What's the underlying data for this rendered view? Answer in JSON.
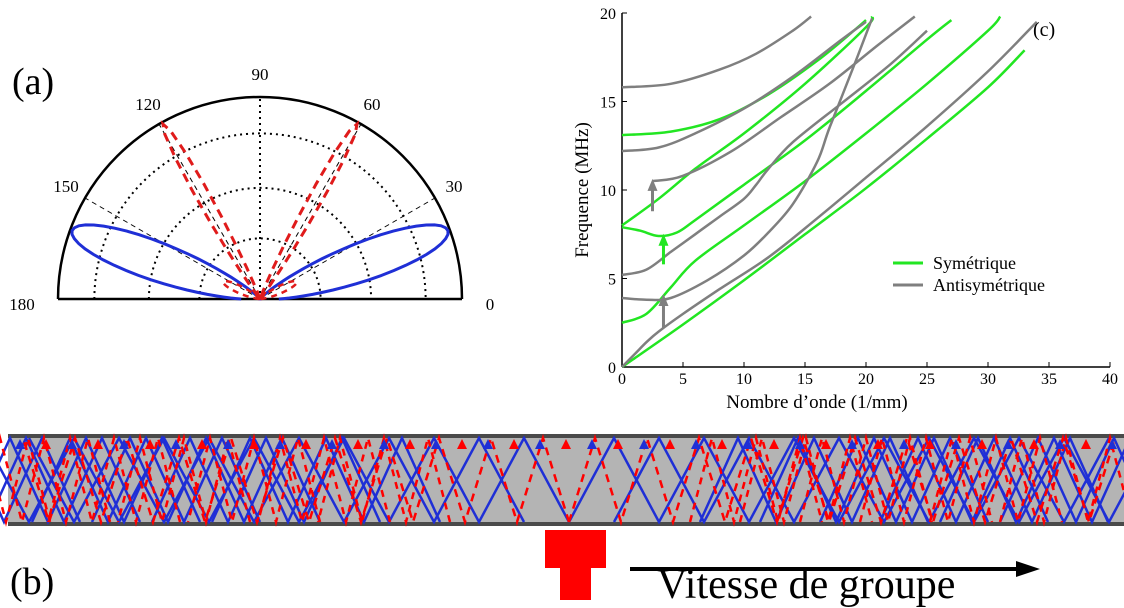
{
  "panel_a": {
    "label": "(a)",
    "angle_labels": [
      "0",
      "30",
      "60",
      "90",
      "120",
      "150",
      "180"
    ],
    "colors": {
      "blue": "#1f2fd6",
      "red": "#e01b1b"
    }
  },
  "panel_b": {
    "label": "(b)",
    "caption": "Vitesse de groupe",
    "colors": {
      "plate": "#b4b4b4",
      "edge": "#4a4a4a",
      "source_arrow": "#ff0000"
    }
  },
  "chart_data": {
    "type": "line",
    "panel_label": "(c)",
    "xlabel": "Nombre d’onde (1/mm)",
    "ylabel": "Frequence (MHz)",
    "xlim": [
      0,
      40
    ],
    "ylim": [
      0,
      20
    ],
    "xticks": [
      "0",
      "5",
      "10",
      "15",
      "20",
      "25",
      "30",
      "35",
      "40"
    ],
    "yticks": [
      "0",
      "5",
      "10",
      "15",
      "20"
    ],
    "legend": {
      "position": "right-middle",
      "entries": [
        "Symétrique",
        "Antisymétrique"
      ]
    },
    "colors": {
      "symmetric": "#22e622",
      "antisymmetric": "#7f7f7f"
    },
    "series": [
      {
        "name": "Symétrique",
        "points": [
          [
            0,
            0
          ],
          [
            5,
            2.4
          ],
          [
            10,
            4.9
          ],
          [
            15,
            7.5
          ],
          [
            20,
            10.1
          ],
          [
            25,
            12.9
          ],
          [
            30,
            15.8
          ],
          [
            33,
            17.9
          ]
        ]
      },
      {
        "name": "Symétrique",
        "points": [
          [
            0,
            2.5
          ],
          [
            2,
            3.0
          ],
          [
            4,
            4.5
          ],
          [
            6,
            6.0
          ],
          [
            10,
            8.0
          ],
          [
            15,
            10.5
          ],
          [
            20,
            13.2
          ],
          [
            25,
            16.0
          ],
          [
            30,
            19.0
          ],
          [
            31,
            19.8
          ]
        ]
      },
      {
        "name": "Symétrique",
        "points": [
          [
            0,
            7.9
          ],
          [
            1.5,
            7.7
          ],
          [
            3,
            7.4
          ],
          [
            4.5,
            7.6
          ],
          [
            6,
            8.3
          ],
          [
            10,
            10.3
          ],
          [
            15,
            12.8
          ],
          [
            20,
            15.6
          ],
          [
            25,
            18.5
          ],
          [
            27,
            19.6
          ]
        ]
      },
      {
        "name": "Symétrique",
        "points": [
          [
            0,
            8.0
          ],
          [
            3,
            9.5
          ],
          [
            6,
            11.2
          ],
          [
            10,
            13.2
          ],
          [
            15,
            16.0
          ],
          [
            20,
            19.2
          ],
          [
            20.5,
            19.8
          ]
        ]
      },
      {
        "name": "Symétrique",
        "points": [
          [
            0,
            13.1
          ],
          [
            4,
            13.3
          ],
          [
            8,
            14.0
          ],
          [
            12,
            15.4
          ],
          [
            16,
            17.3
          ],
          [
            19,
            19.0
          ],
          [
            20,
            19.6
          ]
        ]
      },
      {
        "name": "Antisymétrique",
        "points": [
          [
            0,
            0
          ],
          [
            1,
            0.7
          ],
          [
            2,
            1.4
          ],
          [
            3,
            2.0
          ],
          [
            5,
            3.0
          ],
          [
            8,
            4.4
          ],
          [
            12,
            6.2
          ],
          [
            16,
            8.4
          ],
          [
            20,
            10.7
          ],
          [
            25,
            13.6
          ],
          [
            30,
            16.7
          ],
          [
            34,
            19.5
          ]
        ]
      },
      {
        "name": "Antisymétrique",
        "points": [
          [
            0,
            3.9
          ],
          [
            2,
            3.8
          ],
          [
            4,
            3.9
          ],
          [
            7,
            4.9
          ],
          [
            10,
            6.3
          ],
          [
            12,
            7.6
          ],
          [
            14,
            9.2
          ],
          [
            16,
            11.6
          ],
          [
            17,
            13.5
          ],
          [
            19,
            17.0
          ],
          [
            20.5,
            19.7
          ]
        ]
      },
      {
        "name": "Antisymétrique",
        "points": [
          [
            0,
            5.2
          ],
          [
            2,
            5.5
          ],
          [
            4,
            6.5
          ],
          [
            6,
            7.5
          ],
          [
            8,
            8.5
          ],
          [
            10,
            9.5
          ],
          [
            11,
            10.3
          ],
          [
            12,
            11.2
          ],
          [
            14,
            12.7
          ],
          [
            18,
            14.9
          ],
          [
            22,
            17.1
          ],
          [
            25,
            19.0
          ]
        ]
      },
      {
        "name": "Antisymétrique",
        "points": [
          [
            0,
            12.2
          ],
          [
            3,
            12.4
          ],
          [
            6,
            13.2
          ],
          [
            10,
            14.6
          ],
          [
            14,
            16.4
          ],
          [
            18,
            18.5
          ],
          [
            20,
            19.5
          ]
        ]
      },
      {
        "name": "Antisymétrique",
        "points": [
          [
            2.5,
            10.5
          ],
          [
            5,
            10.8
          ],
          [
            9,
            12.2
          ],
          [
            13,
            14.1
          ],
          [
            17,
            16.0
          ],
          [
            21,
            18.2
          ],
          [
            24,
            19.8
          ]
        ]
      },
      {
        "name": "Antisymétrique",
        "points": [
          [
            0,
            15.8
          ],
          [
            4,
            16.0
          ],
          [
            8,
            16.8
          ],
          [
            11,
            17.7
          ],
          [
            14,
            19.0
          ],
          [
            15.5,
            19.8
          ]
        ]
      }
    ],
    "annotations": [
      {
        "type": "arrow",
        "color": "gray",
        "x": 2.5,
        "from": 8.8,
        "to": 10.4
      },
      {
        "type": "arrow",
        "color": "green",
        "x": 3.4,
        "from": 5.8,
        "to": 7.3
      },
      {
        "type": "arrow",
        "color": "gray",
        "x": 3.4,
        "from": 2.2,
        "to": 3.9
      }
    ]
  }
}
